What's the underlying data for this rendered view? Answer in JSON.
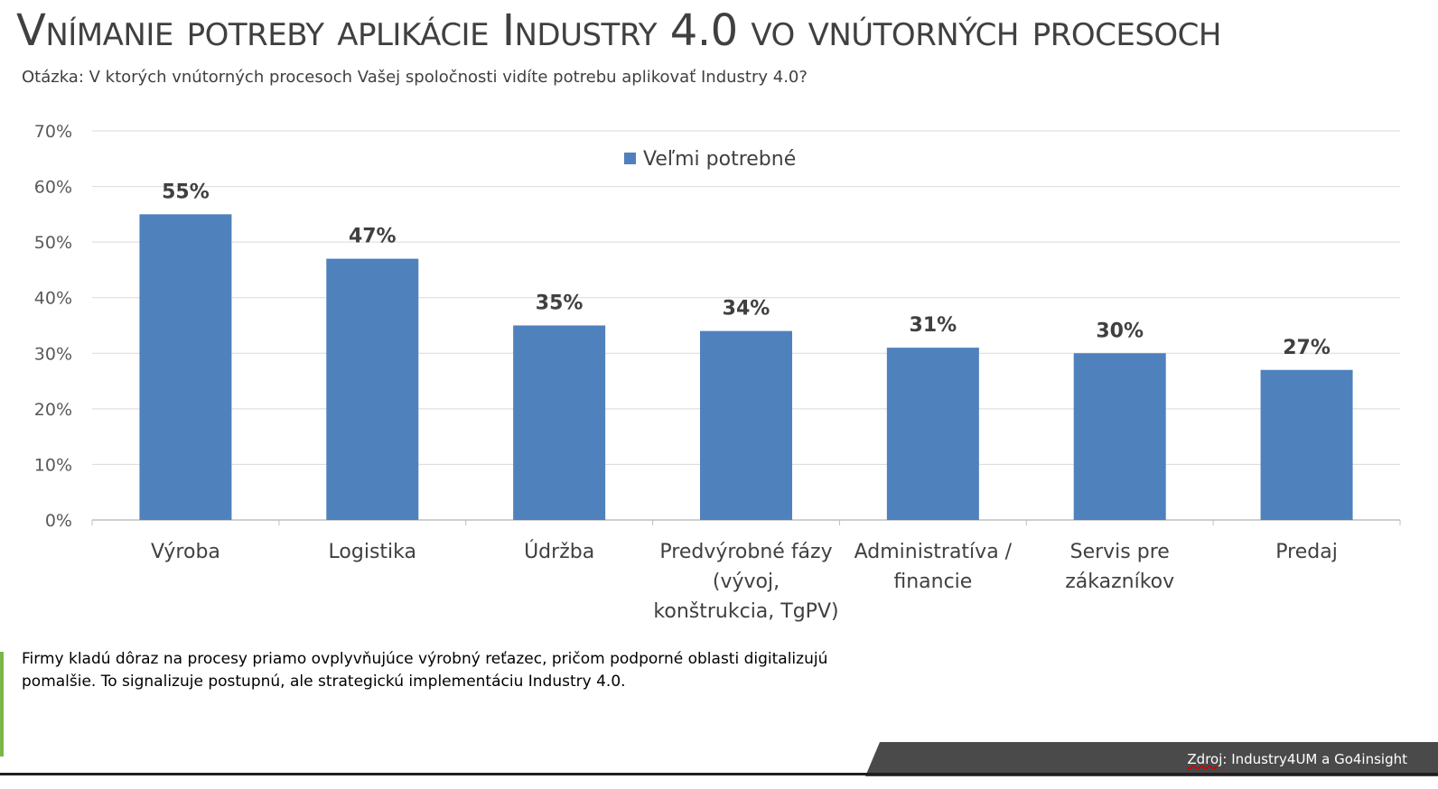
{
  "title": "Vnímanie potreby aplikácie Industry 4.0 vo vnútorných procesoch",
  "subtitle": "Otázka: V ktorých vnútorných procesoch Vašej spoločnosti vidíte potrebu aplikovať Industry 4.0?",
  "note": "Firmy kladú dôraz na procesy priamo ovplyvňujúce výrobný reťazec, pričom podporné oblasti digitalizujú pomalšie. To signalizuje postupnú, ale strategickú implementáciu Industry 4.0.",
  "source": {
    "label": "Zdroj",
    "text": ": Industry4UM a Go4insight"
  },
  "chart_data": {
    "type": "bar",
    "categories": [
      [
        "Výroba"
      ],
      [
        "Logistika"
      ],
      [
        "Údržba"
      ],
      [
        "Predvýrobné fázy",
        "(vývoj,",
        "konštrukcia, TgPV)"
      ],
      [
        "Administratíva /",
        "financie"
      ],
      [
        "Servis pre",
        "zákazníkov"
      ],
      [
        "Predaj"
      ]
    ],
    "series": [
      {
        "name": "Veľmi potrebné",
        "values": [
          55,
          47,
          35,
          34,
          31,
          30,
          27
        ]
      }
    ],
    "data_labels": [
      "55%",
      "47%",
      "35%",
      "34%",
      "31%",
      "30%",
      "27%"
    ],
    "y_ticks": [
      "0%",
      "10%",
      "20%",
      "30%",
      "40%",
      "50%",
      "60%",
      "70%"
    ],
    "ylim": [
      0,
      70
    ],
    "grid": true,
    "legend_position": "top-center",
    "bar_color": "#4f81bd"
  }
}
